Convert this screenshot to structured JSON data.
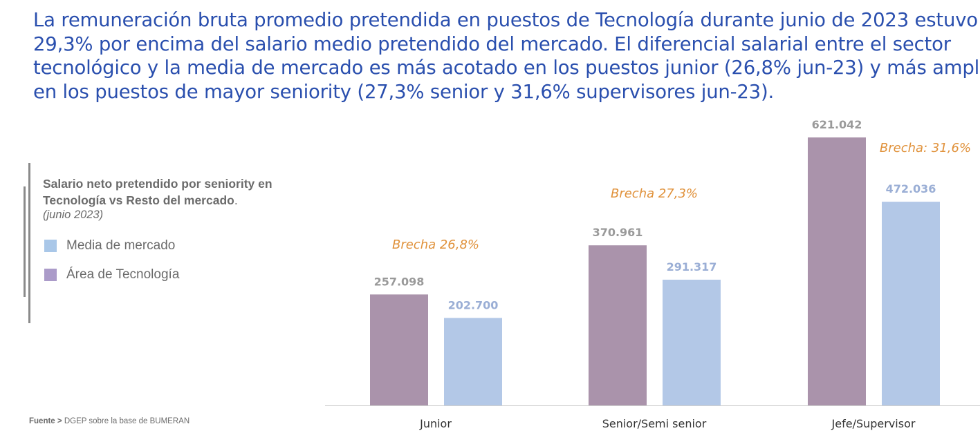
{
  "headline": {
    "line1": "La remuneración bruta promedio pretendida en puestos de Tecnología durante junio de 2023 estuvo",
    "line2": "29,3% por encima del salario medio pretendido del mercado. El diferencial salarial entre el sector",
    "line3": "tecnológico y la media de mercado es más acotado en los puestos junior (26,8% jun-23) y más amplio",
    "line4": "en los puestos de mayor seniority (27,3% senior y 31,6% supervisores jun-23)."
  },
  "legend": {
    "title": "Salario neto pretendido por seniority en Tecnología vs Resto del mercado",
    "title_end": ".",
    "subtitle": "(junio 2023)",
    "items": [
      {
        "label": "Media de mercado",
        "color": "#a9c7e8"
      },
      {
        "label": "Área de Tecnología",
        "color": "#ab9bc9"
      }
    ]
  },
  "source": {
    "prefix": "Fuente >",
    "text": "DGEP sobre la base de BUMERAN"
  },
  "colors": {
    "tech_bar": "#aa93ab",
    "market_bar": "#b3c8e7",
    "tech_label": "#9a9a9a",
    "market_label": "#9aaed5",
    "brecha": "#e0913a"
  },
  "chart_data": {
    "type": "bar",
    "title": "Salario neto pretendido por seniority en Tecnología vs Resto del mercado. (junio 2023)",
    "categories": [
      "Junior",
      "Senior/Semi senior",
      "Jefe/Supervisor"
    ],
    "series": [
      {
        "name": "Área de Tecnología",
        "values": [
          257098,
          370961,
          621042
        ],
        "labels": [
          "257.098",
          "370.961",
          "621.042"
        ]
      },
      {
        "name": "Media de mercado",
        "values": [
          202700,
          291317,
          472036
        ],
        "labels": [
          "202.700",
          "291.317",
          "472.036"
        ]
      }
    ],
    "annotations": [
      "Brecha 26,8%",
      "Brecha 27,3%",
      "Brecha: 31,6%"
    ],
    "xlabel": "",
    "ylabel": "",
    "ylim": [
      0,
      621042
    ],
    "grid": false,
    "legend": "left"
  }
}
